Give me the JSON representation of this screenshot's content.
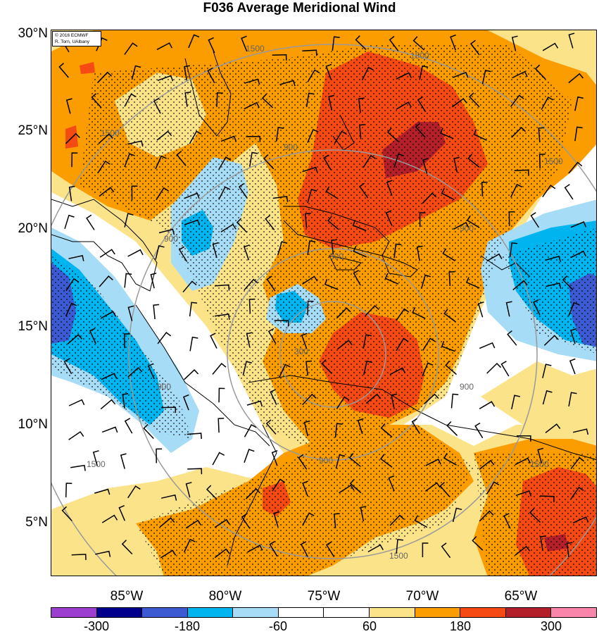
{
  "title": "F036 Average Meridional Wind",
  "credit": {
    "line1": "© 2016 ECMWF",
    "line2": "R. Torn, UAlbany"
  },
  "lat_labels": [
    "30°N",
    "25°N",
    "20°N",
    "15°N",
    "10°N",
    "5°N"
  ],
  "lon_labels": [
    "85°W",
    "80°W",
    "75°W",
    "70°W",
    "65°W"
  ],
  "contour_labels": [
    "1500",
    "1500",
    "1500",
    "1500",
    "1500",
    "1500",
    "1500",
    "900",
    "900",
    "900",
    "900",
    "900",
    "900",
    "300",
    "300"
  ],
  "colorbar": {
    "colors": [
      "#9c3fd0",
      "#00008c",
      "#3c5ad2",
      "#00b4f0",
      "#a6dcf5",
      "#ffffff",
      "#ffffff",
      "#fbe38a",
      "#fb9c00",
      "#f54a14",
      "#b3202a",
      "#f985aa"
    ],
    "labels": [
      "-300",
      "-180",
      "-60",
      "60",
      "180",
      "300"
    ]
  },
  "palette": {
    "yellow": "#fbe38a",
    "orange": "#fb9c00",
    "red": "#f54a14",
    "darkred": "#b3202a",
    "lightblue": "#a6dcf5",
    "blue": "#00b4f0",
    "darkblue": "#3c5ad2"
  }
}
